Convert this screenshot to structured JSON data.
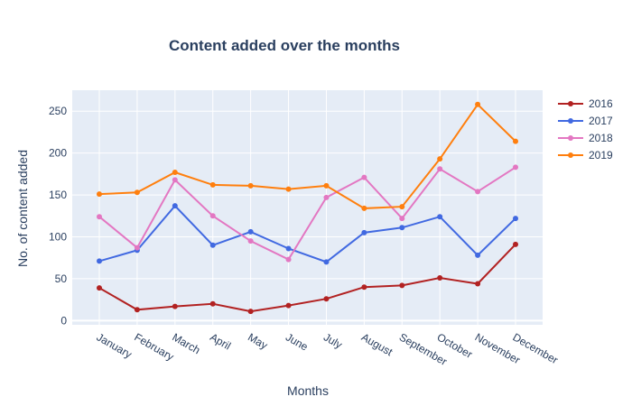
{
  "chart_data": {
    "type": "line",
    "title": "Content added over the months",
    "xlabel": "Months",
    "ylabel": "No. of content added",
    "categories": [
      "January",
      "February",
      "March",
      "April",
      "May",
      "June",
      "July",
      "August",
      "September",
      "October",
      "November",
      "December"
    ],
    "ylim": [
      -5,
      275
    ],
    "yticks": [
      0,
      50,
      100,
      150,
      200,
      250
    ],
    "grid": true,
    "legend_position": "right",
    "series": [
      {
        "name": "2016",
        "color": "#b22222",
        "values": [
          39,
          13,
          17,
          20,
          11,
          18,
          26,
          40,
          42,
          51,
          44,
          91
        ]
      },
      {
        "name": "2017",
        "color": "#4169e1",
        "values": [
          71,
          84,
          137,
          90,
          106,
          86,
          70,
          105,
          111,
          124,
          78,
          122
        ]
      },
      {
        "name": "2018",
        "color": "#e377c2",
        "values": [
          124,
          87,
          168,
          125,
          95,
          73,
          147,
          171,
          122,
          181,
          154,
          183
        ]
      },
      {
        "name": "2019",
        "color": "#ff7f0e",
        "values": [
          151,
          153,
          177,
          162,
          161,
          157,
          161,
          134,
          136,
          193,
          258,
          214
        ]
      }
    ]
  }
}
